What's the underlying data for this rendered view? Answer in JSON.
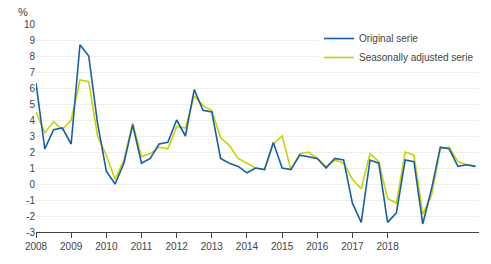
{
  "chart_data": {
    "type": "line",
    "x": [
      2008.0,
      2008.25,
      2008.5,
      2008.75,
      2009.0,
      2009.25,
      2009.5,
      2009.75,
      2010.0,
      2010.25,
      2010.5,
      2010.75,
      2011.0,
      2011.25,
      2011.5,
      2011.75,
      2012.0,
      2012.25,
      2012.5,
      2012.75,
      2013.0,
      2013.25,
      2013.5,
      2013.75,
      2014.0,
      2014.25,
      2014.5,
      2014.75,
      2015.0,
      2015.25,
      2015.5,
      2015.75,
      2016.0,
      2016.25,
      2016.5,
      2016.75,
      2017.0,
      2017.25,
      2017.5,
      2017.75,
      2018.0,
      2018.25,
      2018.5,
      2018.75,
      2019.0,
      2019.25,
      2019.5,
      2019.75,
      2020.0,
      2020.25,
      2020.5
    ],
    "series": [
      {
        "name": "Seasonally adjusted serie",
        "color": "#c8d400",
        "values": [
          4.5,
          3.2,
          3.9,
          3.4,
          4.0,
          6.5,
          6.4,
          3.0,
          1.8,
          0.3,
          1.5,
          3.8,
          1.7,
          1.9,
          2.3,
          2.2,
          3.6,
          3.5,
          5.5,
          4.9,
          4.6,
          2.9,
          2.4,
          1.6,
          1.3,
          1.0,
          0.9,
          2.5,
          3.0,
          0.9,
          1.9,
          2.0,
          1.6,
          1.1,
          1.5,
          1.3,
          0.3,
          -0.3,
          1.9,
          1.4,
          -0.9,
          -1.2,
          2.0,
          1.8,
          -1.9,
          -0.7,
          2.2,
          2.3,
          1.4,
          1.2,
          1.1
        ]
      },
      {
        "name": "Original serie",
        "color": "#1a5fa6",
        "values": [
          6.3,
          2.2,
          3.4,
          3.5,
          2.5,
          8.7,
          8.0,
          3.8,
          0.8,
          0.0,
          1.3,
          3.7,
          1.3,
          1.6,
          2.5,
          2.6,
          4.0,
          3.0,
          5.9,
          4.6,
          4.5,
          1.6,
          1.3,
          1.1,
          0.7,
          1.0,
          0.9,
          2.6,
          1.0,
          0.9,
          1.8,
          1.7,
          1.6,
          1.0,
          1.6,
          1.5,
          -1.2,
          -2.4,
          1.5,
          1.3,
          -2.4,
          -1.8,
          1.5,
          1.4,
          -2.5,
          -0.3,
          2.3,
          2.2,
          1.1,
          1.2,
          1.1
        ]
      }
    ],
    "ylabel": "%",
    "xlim": [
      2008.0,
      2020.6
    ],
    "xticks": [
      2008,
      2009,
      2010,
      2011,
      2012,
      2013,
      2014,
      2015,
      2016,
      2017,
      2018
    ],
    "ylim": [
      -3,
      10
    ],
    "yticks": [
      -3,
      -2,
      -1,
      0,
      1,
      2,
      3,
      4,
      5,
      6,
      7,
      8,
      9,
      10
    ],
    "grid": true,
    "legend": "upper right"
  }
}
